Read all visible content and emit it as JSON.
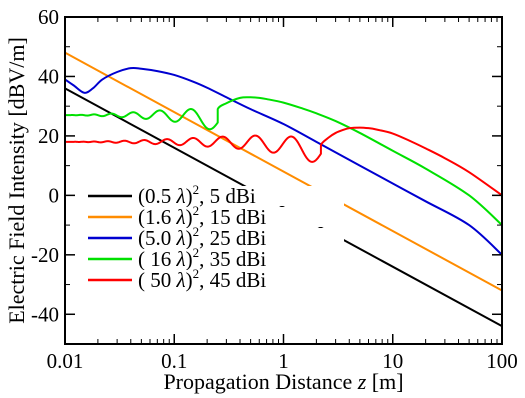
{
  "chart_data": {
    "type": "line",
    "title": "",
    "xlabel": "Propagation Distance z [m]",
    "xlabel_parts": {
      "before": "Propagation Distance ",
      "var": "z",
      "after": " [m]"
    },
    "ylabel": "Electric Field Intensity [dBV/m]",
    "xscale": "log",
    "xlim": [
      0.01,
      100
    ],
    "ylim": [
      -50,
      60
    ],
    "xticks": [
      0.01,
      0.1,
      1,
      10,
      100
    ],
    "xtick_labels": [
      "0.01",
      "0.1",
      "1",
      "10",
      "100"
    ],
    "yticks": [
      -40,
      -20,
      0,
      20,
      40,
      60
    ],
    "ytick_labels": [
      "-40",
      "-20",
      "0",
      "20",
      "40",
      "60"
    ],
    "grid": false,
    "legend_position": "lower-left",
    "series": [
      {
        "name": "(0.5 λ)², 5 dBi",
        "legend": {
          "base": "(0.5 ",
          "lam": "λ",
          "close": ")",
          "sup": "2",
          "gain": ",   5 dBi"
        },
        "color": "#000000",
        "x": [
          0.01,
          100
        ],
        "y": [
          36,
          -44
        ],
        "near_field": null
      },
      {
        "name": "(1.6 λ)², 15 dBi",
        "legend": {
          "base": "(1.6 ",
          "lam": "λ",
          "close": ")",
          "sup": "2",
          "gain": ", 15 dBi"
        },
        "color": "#ff8c00",
        "x": [
          0.01,
          100
        ],
        "y": [
          48,
          -32
        ],
        "near_field": null
      },
      {
        "name": "(5.0 λ)², 25 dBi",
        "legend": {
          "base": "(5.0 ",
          "lam": "λ",
          "close": ")",
          "sup": "2",
          "gain": ", 25 dBi"
        },
        "color": "#0000d0",
        "x": [
          0.01,
          0.012,
          0.015,
          0.018,
          0.022,
          0.03,
          0.04,
          0.05,
          0.07,
          0.1,
          0.15,
          0.2,
          0.3,
          0.5,
          1,
          2,
          5,
          10,
          20,
          50,
          100
        ],
        "y": [
          39,
          37,
          34.5,
          36,
          39,
          41.5,
          42.8,
          42.6,
          41.8,
          40.5,
          38.2,
          36.2,
          33,
          29,
          24,
          18,
          10,
          4,
          -2,
          -10,
          -20
        ],
        "near_field": null
      },
      {
        "name": "( 16 λ)², 35 dBi",
        "legend": {
          "base": "( 16 ",
          "lam": "λ",
          "close": ")",
          "sup": "2",
          "gain": ", 35 dBi"
        },
        "color": "#00e000",
        "x": [
          0.25,
          0.3,
          0.4,
          0.5,
          0.6,
          0.7,
          1,
          1.5,
          2,
          3,
          5,
          10,
          20,
          50,
          100
        ],
        "y": [
          29,
          31,
          32.8,
          33,
          32.8,
          32.4,
          31.2,
          29.2,
          27.6,
          25,
          21,
          15,
          9,
          0,
          -10
        ],
        "near_field": {
          "x_start": 0.01,
          "x_end": 0.25,
          "level": 27,
          "amplitude": 3.5,
          "cycles": 9,
          "dip_depth": 2.5
        }
      },
      {
        "name": "( 50 λ)², 45 dBi",
        "legend": {
          "base": "( 50 ",
          "lam": "λ",
          "close": ")",
          "sup": "2",
          "gain": ", 45 dBi"
        },
        "color": "#ff0000",
        "x": [
          2.2,
          2.6,
          3,
          3.5,
          4,
          5,
          6,
          7,
          10,
          15,
          20,
          30,
          50,
          100
        ],
        "y": [
          17,
          19.5,
          21,
          22,
          22.6,
          22.8,
          22.6,
          22.2,
          20.8,
          18,
          15.8,
          12.5,
          7.8,
          0
        ],
        "near_field": {
          "x_start": 0.01,
          "x_end": 2.2,
          "level": 18,
          "amplitude": 4,
          "cycles": 14,
          "dip_depth": 4
        }
      }
    ]
  }
}
